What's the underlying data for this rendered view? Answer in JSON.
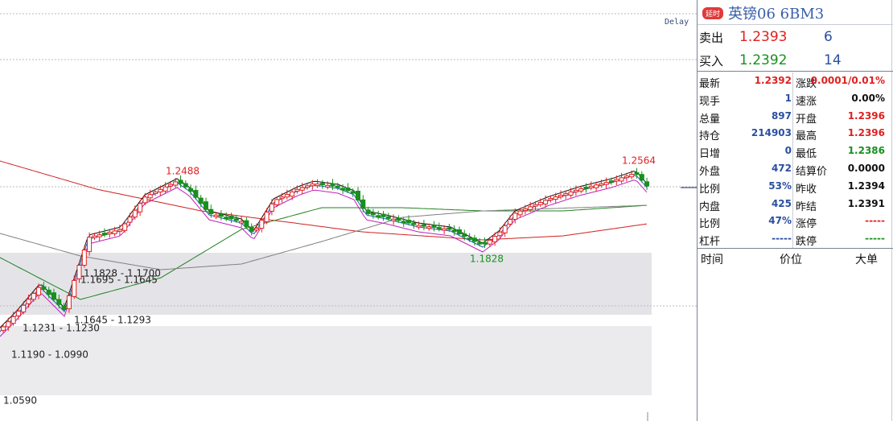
{
  "chart": {
    "delay": "Delay",
    "high_label": "1.2564",
    "prev_high_label": "1.2488",
    "low_label": "1.1828",
    "zones": [
      "1.1828 - 1.1700",
      "1.1695 - 1.1645",
      "1.1645 - 1.1293",
      "1.1231 - 1.1230",
      "1.1190 - 1.0990"
    ],
    "bottom_label": "1.0590"
  },
  "header": {
    "badge": "延时",
    "title": "英镑06  6BM3"
  },
  "quote": {
    "ask": {
      "label": "卖出",
      "price": "1.2393",
      "volume": "6",
      "color": "#e02020"
    },
    "bid": {
      "label": "买入",
      "price": "1.2392",
      "volume": "14",
      "color": "#18901e"
    }
  },
  "stats": {
    "rows": [
      {
        "left": {
          "label": "最新",
          "value": "1.2392",
          "color": "#e02020"
        },
        "right": {
          "label": "涨跌",
          "value": "0.0001/0.01%",
          "color": "#e02020"
        }
      },
      {
        "left": {
          "label": "现手",
          "value": "1",
          "color": "#2a4fa0"
        },
        "right": {
          "label": "速涨",
          "value": "0.00%",
          "color": "#111111"
        }
      },
      {
        "left": {
          "label": "总量",
          "value": "897",
          "color": "#2a4fa0"
        },
        "right": {
          "label": "开盘",
          "value": "1.2396",
          "color": "#e02020"
        }
      },
      {
        "left": {
          "label": "持仓",
          "value": "214903",
          "color": "#2a4fa0"
        },
        "right": {
          "label": "最高",
          "value": "1.2396",
          "color": "#e02020"
        }
      },
      {
        "left": {
          "label": "日增",
          "value": "0",
          "color": "#2a4fa0"
        },
        "right": {
          "label": "最低",
          "value": "1.2386",
          "color": "#18901e"
        }
      },
      {
        "left": {
          "label": "外盘",
          "value": "472",
          "color": "#2a4fa0"
        },
        "right": {
          "label": "结算价",
          "value": "0.0000",
          "color": "#111111"
        }
      },
      {
        "left": {
          "label": "比例",
          "value": "53%",
          "color": "#2a4fa0"
        },
        "right": {
          "label": "昨收",
          "value": "1.2394",
          "color": "#111111"
        }
      },
      {
        "left": {
          "label": "内盘",
          "value": "425",
          "color": "#2a4fa0"
        },
        "right": {
          "label": "昨结",
          "value": "1.2391",
          "color": "#111111"
        }
      },
      {
        "left": {
          "label": "比例",
          "value": "47%",
          "color": "#2a4fa0"
        },
        "right": {
          "label": "涨停",
          "value": "-----",
          "color": "#e02020"
        }
      },
      {
        "left": {
          "label": "杠杆",
          "value": "-----",
          "color": "#2a4fa0"
        },
        "right": {
          "label": "跌停",
          "value": "-----",
          "color": "#18901e"
        }
      }
    ]
  },
  "table_header": [
    "时间",
    "价位",
    "大单"
  ]
}
